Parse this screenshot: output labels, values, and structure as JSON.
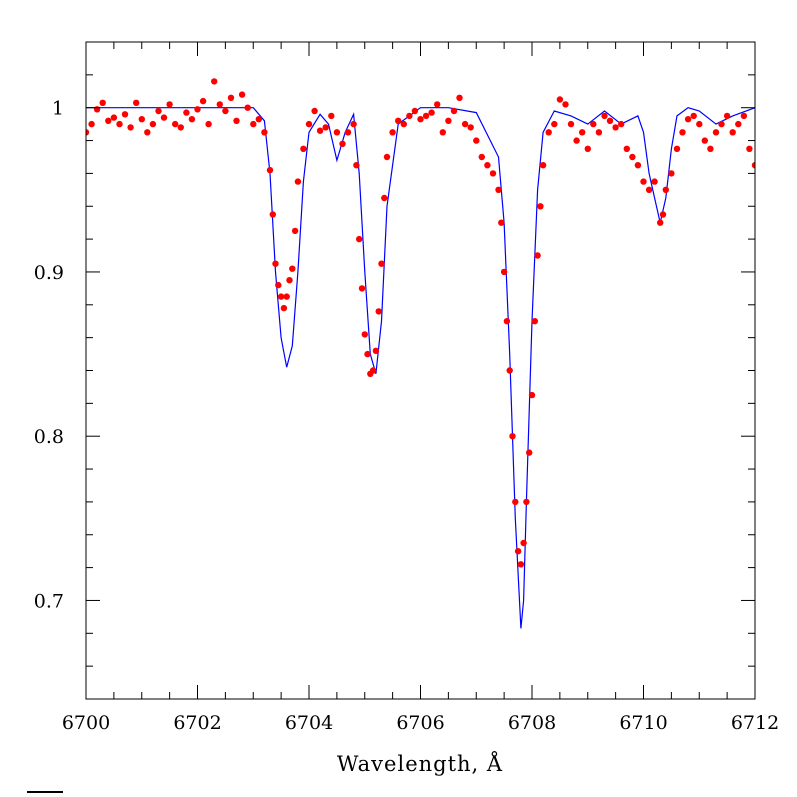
{
  "chart_data": {
    "type": "scatter",
    "title": "",
    "xlabel": "Wavelength, Å",
    "ylabel": "",
    "xlim": [
      6700,
      6712
    ],
    "ylim": [
      0.64,
      1.04
    ],
    "x_ticks_major": [
      6700,
      6702,
      6704,
      6706,
      6708,
      6710,
      6712
    ],
    "x_tick_labels": [
      "6700",
      "6702",
      "6704",
      "6706",
      "6708",
      "6710",
      "6712"
    ],
    "y_ticks_major": [
      0.7,
      0.8,
      0.9,
      1.0
    ],
    "y_tick_labels": [
      "0.7",
      "0.8",
      "0.9",
      "1"
    ],
    "grid": false,
    "legend": "none",
    "colors": {
      "observed": "#ff0000",
      "model": "#0000ff"
    },
    "series": [
      {
        "kind": "scatter",
        "description_role": "observed",
        "x": [
          6700.0,
          6700.1,
          6700.2,
          6700.3,
          6700.4,
          6700.5,
          6700.6,
          6700.7,
          6700.8,
          6700.9,
          6701.0,
          6701.1,
          6701.2,
          6701.3,
          6701.4,
          6701.5,
          6701.6,
          6701.7,
          6701.8,
          6701.9,
          6702.0,
          6702.1,
          6702.2,
          6702.3,
          6702.4,
          6702.5,
          6702.6,
          6702.7,
          6702.8,
          6702.9,
          6703.0,
          6703.1,
          6703.2,
          6703.3,
          6703.35,
          6703.4,
          6703.45,
          6703.5,
          6703.55,
          6703.6,
          6703.65,
          6703.7,
          6703.75,
          6703.8,
          6703.9,
          6704.0,
          6704.1,
          6704.2,
          6704.3,
          6704.4,
          6704.5,
          6704.6,
          6704.7,
          6704.8,
          6704.85,
          6704.9,
          6704.95,
          6705.0,
          6705.05,
          6705.1,
          6705.15,
          6705.2,
          6705.25,
          6705.3,
          6705.35,
          6705.4,
          6705.5,
          6705.6,
          6705.7,
          6705.8,
          6705.9,
          6706.0,
          6706.1,
          6706.2,
          6706.3,
          6706.4,
          6706.5,
          6706.6,
          6706.7,
          6706.8,
          6706.9,
          6707.0,
          6707.1,
          6707.2,
          6707.3,
          6707.4,
          6707.45,
          6707.5,
          6707.55,
          6707.6,
          6707.65,
          6707.7,
          6707.75,
          6707.8,
          6707.85,
          6707.9,
          6707.95,
          6708.0,
          6708.05,
          6708.1,
          6708.15,
          6708.2,
          6708.3,
          6708.4,
          6708.5,
          6708.6,
          6708.7,
          6708.8,
          6708.9,
          6709.0,
          6709.1,
          6709.2,
          6709.3,
          6709.4,
          6709.5,
          6709.6,
          6709.7,
          6709.8,
          6709.9,
          6710.0,
          6710.1,
          6710.2,
          6710.3,
          6710.35,
          6710.4,
          6710.5,
          6710.6,
          6710.7,
          6710.8,
          6710.9,
          6711.0,
          6711.1,
          6711.2,
          6711.3,
          6711.4,
          6711.5,
          6711.6,
          6711.7,
          6711.8,
          6711.9,
          6712.0
        ],
        "y": [
          0.985,
          0.99,
          0.999,
          1.003,
          0.992,
          0.994,
          0.99,
          0.996,
          0.988,
          1.003,
          0.993,
          0.985,
          0.99,
          0.998,
          0.994,
          1.002,
          0.99,
          0.988,
          0.997,
          0.993,
          0.999,
          1.004,
          0.99,
          1.016,
          1.002,
          0.998,
          1.006,
          0.992,
          1.008,
          1.0,
          0.99,
          0.993,
          0.985,
          0.962,
          0.935,
          0.905,
          0.892,
          0.885,
          0.878,
          0.885,
          0.895,
          0.902,
          0.925,
          0.955,
          0.975,
          0.99,
          0.998,
          0.986,
          0.988,
          0.995,
          0.985,
          0.978,
          0.985,
          0.99,
          0.965,
          0.92,
          0.89,
          0.862,
          0.85,
          0.838,
          0.84,
          0.852,
          0.876,
          0.905,
          0.945,
          0.97,
          0.985,
          0.992,
          0.99,
          0.995,
          0.998,
          0.993,
          0.995,
          0.997,
          1.002,
          0.985,
          0.992,
          0.998,
          1.006,
          0.99,
          0.988,
          0.98,
          0.97,
          0.965,
          0.96,
          0.95,
          0.93,
          0.9,
          0.87,
          0.84,
          0.8,
          0.76,
          0.73,
          0.722,
          0.735,
          0.76,
          0.79,
          0.825,
          0.87,
          0.91,
          0.94,
          0.965,
          0.985,
          0.99,
          1.005,
          1.002,
          0.99,
          0.98,
          0.985,
          0.975,
          0.99,
          0.985,
          0.995,
          0.992,
          0.988,
          0.99,
          0.975,
          0.97,
          0.965,
          0.955,
          0.95,
          0.955,
          0.93,
          0.935,
          0.95,
          0.96,
          0.975,
          0.985,
          0.993,
          0.995,
          0.99,
          0.98,
          0.975,
          0.985,
          0.99,
          0.995,
          0.985,
          0.99,
          0.995,
          0.975,
          0.965
        ]
      },
      {
        "kind": "line",
        "description_role": "model",
        "x": [
          6700.0,
          6703.0,
          6703.2,
          6703.3,
          6703.4,
          6703.5,
          6703.6,
          6703.7,
          6703.8,
          6703.9,
          6704.0,
          6704.2,
          6704.35,
          6704.5,
          6704.65,
          6704.8,
          6704.9,
          6705.0,
          6705.1,
          6705.2,
          6705.3,
          6705.4,
          6705.6,
          6706.0,
          6706.5,
          6707.0,
          6707.4,
          6707.5,
          6707.6,
          6707.7,
          6707.8,
          6707.85,
          6707.9,
          6708.0,
          6708.1,
          6708.2,
          6708.4,
          6708.7,
          6709.0,
          6709.3,
          6709.6,
          6709.9,
          6710.0,
          6710.1,
          6710.2,
          6710.3,
          6710.4,
          6710.5,
          6710.6,
          6710.8,
          6711.0,
          6711.3,
          6711.6,
          6712.0
        ],
        "y": [
          1.0,
          1.0,
          0.992,
          0.96,
          0.9,
          0.86,
          0.842,
          0.855,
          0.9,
          0.955,
          0.985,
          0.996,
          0.99,
          0.968,
          0.985,
          0.996,
          0.96,
          0.9,
          0.85,
          0.838,
          0.87,
          0.94,
          0.99,
          1.0,
          1.0,
          0.997,
          0.97,
          0.93,
          0.85,
          0.75,
          0.683,
          0.7,
          0.76,
          0.87,
          0.95,
          0.985,
          0.998,
          0.995,
          0.99,
          0.998,
          0.99,
          0.995,
          0.985,
          0.96,
          0.945,
          0.93,
          0.945,
          0.975,
          0.995,
          1.0,
          0.998,
          0.99,
          0.995,
          1.0
        ]
      }
    ]
  }
}
